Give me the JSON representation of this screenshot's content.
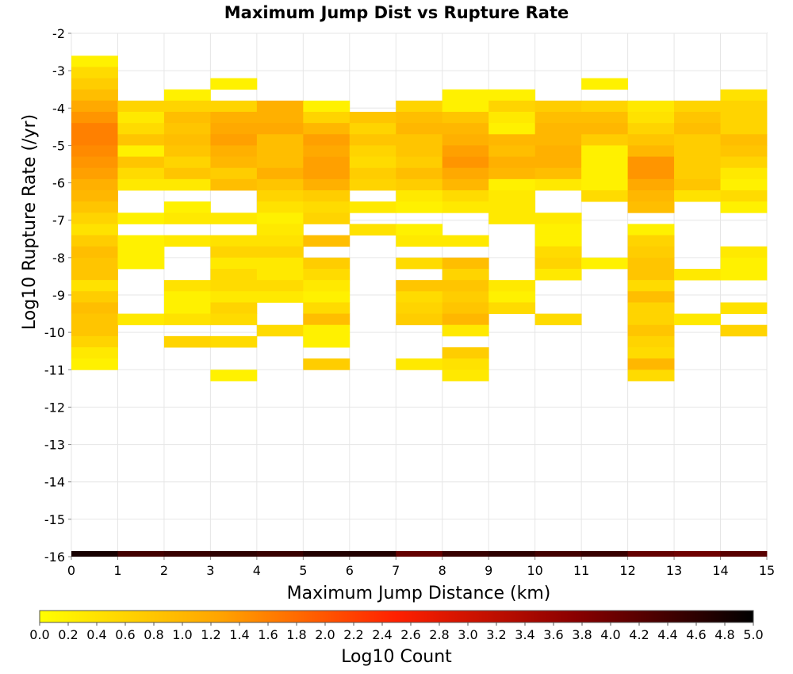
{
  "chart_data": {
    "type": "heatmap",
    "title": "Maximum Jump Dist vs Rupture Rate",
    "xlabel": "Maximum Jump Distance (km)",
    "ylabel": "Log10 Rupture Rate (/yr)",
    "xlim": [
      0,
      15
    ],
    "ylim": [
      -16,
      -2
    ],
    "x_ticks": [
      "0",
      "1",
      "2",
      "3",
      "4",
      "5",
      "6",
      "7",
      "8",
      "9",
      "10",
      "11",
      "12",
      "13",
      "14",
      "15"
    ],
    "y_ticks": [
      "-2",
      "-3",
      "-4",
      "-5",
      "-6",
      "-7",
      "-8",
      "-9",
      "-10",
      "-11",
      "-12",
      "-13",
      "-14",
      "-15",
      "-16"
    ],
    "grid": true,
    "x_bin_width": 1,
    "y_bin_width": 0.3,
    "colorbar": {
      "label": "Log10 Count",
      "min": 0.0,
      "max": 5.0,
      "ticks": [
        "0.0",
        "0.2",
        "0.4",
        "0.6",
        "0.8",
        "1.0",
        "1.2",
        "1.4",
        "1.6",
        "1.8",
        "2.0",
        "2.2",
        "2.4",
        "2.6",
        "2.8",
        "3.0",
        "3.2",
        "3.4",
        "3.6",
        "3.8",
        "4.0",
        "4.2",
        "4.4",
        "4.6",
        "4.8",
        "5.0"
      ],
      "colors": [
        "#ffff00",
        "#ffa500",
        "#ff2000",
        "#8a0000",
        "#000000"
      ]
    },
    "cell_columns_note": "each column: x bin start (km); cells: [log10 rupture rate bin start, log10 count]",
    "columns": [
      {
        "x": 0,
        "cells": [
          [
            -2.9,
            0.2
          ],
          [
            -3.2,
            0.5
          ],
          [
            -3.5,
            0.7
          ],
          [
            -3.8,
            0.9
          ],
          [
            -4.1,
            1.2
          ],
          [
            -4.4,
            1.4
          ],
          [
            -4.7,
            1.6
          ],
          [
            -5.0,
            1.6
          ],
          [
            -5.3,
            1.5
          ],
          [
            -5.6,
            1.4
          ],
          [
            -5.9,
            1.3
          ],
          [
            -6.2,
            1.1
          ],
          [
            -6.5,
            1.0
          ],
          [
            -6.8,
            0.8
          ],
          [
            -7.1,
            0.6
          ],
          [
            -7.4,
            0.4
          ],
          [
            -7.7,
            0.7
          ],
          [
            -8.0,
            0.9
          ],
          [
            -8.3,
            0.8
          ],
          [
            -8.6,
            0.8
          ],
          [
            -8.9,
            0.4
          ],
          [
            -9.2,
            0.7
          ],
          [
            -9.5,
            0.9
          ],
          [
            -9.8,
            0.8
          ],
          [
            -10.1,
            0.8
          ],
          [
            -10.4,
            0.6
          ],
          [
            -10.7,
            0.3
          ],
          [
            -11.0,
            0.2
          ]
        ]
      },
      {
        "x": 1,
        "cells": [
          [
            -4.1,
            0.6
          ],
          [
            -4.4,
            0.3
          ],
          [
            -4.7,
            0.5
          ],
          [
            -5.0,
            0.8
          ],
          [
            -5.3,
            0.2
          ],
          [
            -5.6,
            0.8
          ],
          [
            -5.9,
            0.5
          ],
          [
            -6.2,
            0.3
          ],
          [
            -7.1,
            0.2
          ],
          [
            -7.7,
            0.2
          ],
          [
            -8.0,
            0.2
          ],
          [
            -8.3,
            0.2
          ],
          [
            -9.8,
            0.3
          ]
        ]
      },
      {
        "x": 2,
        "cells": [
          [
            -3.8,
            0.2
          ],
          [
            -4.1,
            0.6
          ],
          [
            -4.4,
            0.9
          ],
          [
            -4.7,
            0.8
          ],
          [
            -5.0,
            0.9
          ],
          [
            -5.3,
            0.8
          ],
          [
            -5.6,
            0.6
          ],
          [
            -5.9,
            0.8
          ],
          [
            -6.2,
            0.3
          ],
          [
            -6.8,
            0.2
          ],
          [
            -7.1,
            0.3
          ],
          [
            -7.7,
            0.3
          ],
          [
            -8.9,
            0.4
          ],
          [
            -9.2,
            0.2
          ],
          [
            -9.5,
            0.2
          ],
          [
            -9.8,
            0.4
          ],
          [
            -10.4,
            0.6
          ]
        ]
      },
      {
        "x": 3,
        "cells": [
          [
            -3.5,
            0.2
          ],
          [
            -4.1,
            0.6
          ],
          [
            -4.4,
            1.1
          ],
          [
            -4.7,
            1.2
          ],
          [
            -5.0,
            1.3
          ],
          [
            -5.3,
            1.1
          ],
          [
            -5.6,
            1.0
          ],
          [
            -5.9,
            0.7
          ],
          [
            -6.2,
            0.9
          ],
          [
            -7.1,
            0.3
          ],
          [
            -7.7,
            0.4
          ],
          [
            -8.0,
            0.6
          ],
          [
            -8.3,
            0.3
          ],
          [
            -8.6,
            0.5
          ],
          [
            -8.9,
            0.5
          ],
          [
            -9.2,
            0.3
          ],
          [
            -9.5,
            0.6
          ],
          [
            -9.8,
            0.5
          ],
          [
            -10.4,
            0.5
          ],
          [
            -11.3,
            0.2
          ]
        ]
      },
      {
        "x": 4,
        "cells": [
          [
            -4.1,
            1.1
          ],
          [
            -4.4,
            1.1
          ],
          [
            -4.7,
            1.2
          ],
          [
            -5.0,
            0.9
          ],
          [
            -5.3,
            0.9
          ],
          [
            -5.6,
            0.9
          ],
          [
            -5.9,
            1.1
          ],
          [
            -6.2,
            0.8
          ],
          [
            -6.5,
            0.6
          ],
          [
            -6.8,
            0.4
          ],
          [
            -7.1,
            0.2
          ],
          [
            -7.4,
            0.3
          ],
          [
            -7.7,
            0.4
          ],
          [
            -8.0,
            0.6
          ],
          [
            -8.3,
            0.3
          ],
          [
            -8.6,
            0.3
          ],
          [
            -8.9,
            0.5
          ],
          [
            -9.2,
            0.3
          ],
          [
            -10.1,
            0.5
          ]
        ]
      },
      {
        "x": 5,
        "cells": [
          [
            -4.1,
            0.2
          ],
          [
            -4.4,
            0.6
          ],
          [
            -4.7,
            1.0
          ],
          [
            -5.0,
            1.3
          ],
          [
            -5.3,
            1.2
          ],
          [
            -5.6,
            1.3
          ],
          [
            -5.9,
            1.3
          ],
          [
            -6.2,
            1.1
          ],
          [
            -6.5,
            0.7
          ],
          [
            -6.8,
            0.5
          ],
          [
            -7.1,
            0.6
          ],
          [
            -7.7,
            0.9
          ],
          [
            -8.3,
            0.7
          ],
          [
            -8.6,
            0.5
          ],
          [
            -8.9,
            0.3
          ],
          [
            -9.2,
            0.2
          ],
          [
            -9.5,
            0.5
          ],
          [
            -9.8,
            0.9
          ],
          [
            -10.1,
            0.2
          ],
          [
            -10.4,
            0.2
          ],
          [
            -11.0,
            0.7
          ]
        ]
      },
      {
        "x": 6,
        "cells": [
          [
            -4.4,
            0.8
          ],
          [
            -4.7,
            0.6
          ],
          [
            -5.0,
            0.8
          ],
          [
            -5.3,
            0.6
          ],
          [
            -5.6,
            0.5
          ],
          [
            -5.9,
            0.7
          ],
          [
            -6.2,
            0.6
          ],
          [
            -6.8,
            0.3
          ],
          [
            -7.4,
            0.4
          ]
        ]
      },
      {
        "x": 7,
        "cells": [
          [
            -4.1,
            0.6
          ],
          [
            -4.4,
            0.9
          ],
          [
            -4.7,
            1.0
          ],
          [
            -5.0,
            0.8
          ],
          [
            -5.3,
            0.8
          ],
          [
            -5.6,
            0.7
          ],
          [
            -5.9,
            0.9
          ],
          [
            -6.2,
            0.7
          ],
          [
            -6.5,
            0.3
          ],
          [
            -6.8,
            0.2
          ],
          [
            -7.4,
            0.2
          ],
          [
            -7.7,
            0.3
          ],
          [
            -8.3,
            0.5
          ],
          [
            -8.9,
            0.8
          ],
          [
            -9.2,
            0.5
          ],
          [
            -9.5,
            0.6
          ],
          [
            -9.8,
            0.7
          ],
          [
            -11.0,
            0.3
          ]
        ]
      },
      {
        "x": 8,
        "cells": [
          [
            -3.8,
            0.2
          ],
          [
            -4.1,
            0.2
          ],
          [
            -4.4,
            0.8
          ],
          [
            -4.7,
            1.0
          ],
          [
            -5.0,
            1.1
          ],
          [
            -5.3,
            1.3
          ],
          [
            -5.6,
            1.4
          ],
          [
            -5.9,
            1.2
          ],
          [
            -6.2,
            1.0
          ],
          [
            -6.5,
            0.5
          ],
          [
            -6.8,
            0.3
          ],
          [
            -7.7,
            0.3
          ],
          [
            -8.3,
            0.9
          ],
          [
            -8.6,
            0.6
          ],
          [
            -8.9,
            0.8
          ],
          [
            -9.2,
            0.7
          ],
          [
            -9.5,
            0.8
          ],
          [
            -9.8,
            1.0
          ],
          [
            -10.1,
            0.3
          ],
          [
            -10.7,
            0.7
          ],
          [
            -11.0,
            0.4
          ],
          [
            -11.3,
            0.3
          ]
        ]
      },
      {
        "x": 9,
        "cells": [
          [
            -3.8,
            0.2
          ],
          [
            -4.1,
            0.6
          ],
          [
            -4.4,
            0.3
          ],
          [
            -4.7,
            0.2
          ],
          [
            -5.0,
            1.0
          ],
          [
            -5.3,
            0.9
          ],
          [
            -5.6,
            1.1
          ],
          [
            -5.9,
            1.0
          ],
          [
            -6.2,
            0.2
          ],
          [
            -6.5,
            0.3
          ],
          [
            -6.8,
            0.3
          ],
          [
            -7.1,
            0.3
          ],
          [
            -8.9,
            0.3
          ],
          [
            -9.2,
            0.2
          ],
          [
            -9.5,
            0.5
          ]
        ]
      },
      {
        "x": 10,
        "cells": [
          [
            -4.1,
            0.7
          ],
          [
            -4.4,
            0.9
          ],
          [
            -4.7,
            1.0
          ],
          [
            -5.0,
            1.0
          ],
          [
            -5.3,
            1.1
          ],
          [
            -5.6,
            1.1
          ],
          [
            -5.9,
            0.9
          ],
          [
            -6.2,
            0.3
          ],
          [
            -7.1,
            0.3
          ],
          [
            -7.4,
            0.2
          ],
          [
            -7.7,
            0.2
          ],
          [
            -8.0,
            0.5
          ],
          [
            -8.3,
            0.6
          ],
          [
            -8.6,
            0.3
          ],
          [
            -9.8,
            0.5
          ]
        ]
      },
      {
        "x": 11,
        "cells": [
          [
            -3.5,
            0.2
          ],
          [
            -4.1,
            0.6
          ],
          [
            -4.4,
            0.9
          ],
          [
            -4.7,
            1.0
          ],
          [
            -5.0,
            0.7
          ],
          [
            -5.3,
            0.2
          ],
          [
            -5.6,
            0.2
          ],
          [
            -5.9,
            0.2
          ],
          [
            -6.2,
            0.2
          ],
          [
            -6.5,
            0.5
          ],
          [
            -8.3,
            0.2
          ]
        ]
      },
      {
        "x": 12,
        "cells": [
          [
            -4.1,
            0.3
          ],
          [
            -4.4,
            0.4
          ],
          [
            -4.7,
            0.6
          ],
          [
            -5.0,
            0.8
          ],
          [
            -5.3,
            1.0
          ],
          [
            -5.6,
            1.4
          ],
          [
            -5.9,
            1.4
          ],
          [
            -6.2,
            1.2
          ],
          [
            -6.5,
            1.0
          ],
          [
            -6.8,
            0.9
          ],
          [
            -7.4,
            0.2
          ],
          [
            -7.7,
            0.6
          ],
          [
            -8.0,
            0.7
          ],
          [
            -8.3,
            0.8
          ],
          [
            -8.6,
            0.8
          ],
          [
            -8.9,
            0.5
          ],
          [
            -9.2,
            0.9
          ],
          [
            -9.5,
            0.6
          ],
          [
            -9.8,
            0.6
          ],
          [
            -10.1,
            0.8
          ],
          [
            -10.4,
            0.6
          ],
          [
            -10.7,
            0.5
          ],
          [
            -11.0,
            1.0
          ],
          [
            -11.3,
            0.5
          ]
        ]
      },
      {
        "x": 13,
        "cells": [
          [
            -4.1,
            0.6
          ],
          [
            -4.4,
            0.8
          ],
          [
            -4.7,
            0.9
          ],
          [
            -5.0,
            0.7
          ],
          [
            -5.3,
            0.7
          ],
          [
            -5.6,
            0.7
          ],
          [
            -5.9,
            0.7
          ],
          [
            -6.2,
            0.8
          ],
          [
            -6.5,
            0.4
          ],
          [
            -8.6,
            0.3
          ],
          [
            -9.8,
            0.3
          ]
        ]
      },
      {
        "x": 14,
        "cells": [
          [
            -3.8,
            0.4
          ],
          [
            -4.1,
            0.6
          ],
          [
            -4.4,
            0.6
          ],
          [
            -4.7,
            0.6
          ],
          [
            -5.0,
            0.9
          ],
          [
            -5.3,
            0.8
          ],
          [
            -5.6,
            0.6
          ],
          [
            -5.9,
            0.3
          ],
          [
            -6.2,
            0.2
          ],
          [
            -6.5,
            0.5
          ],
          [
            -6.8,
            0.2
          ],
          [
            -8.0,
            0.3
          ],
          [
            -8.3,
            0.2
          ],
          [
            -8.6,
            0.2
          ],
          [
            -9.5,
            0.4
          ],
          [
            -10.1,
            0.6
          ]
        ]
      }
    ],
    "bottom_row": {
      "y": -16,
      "values": [
        4.8,
        4.4,
        4.5,
        4.6,
        4.5,
        4.7,
        4.7,
        4.1,
        4.5,
        4.6,
        4.4,
        4.5,
        4.1,
        4.0,
        4.2
      ]
    }
  }
}
